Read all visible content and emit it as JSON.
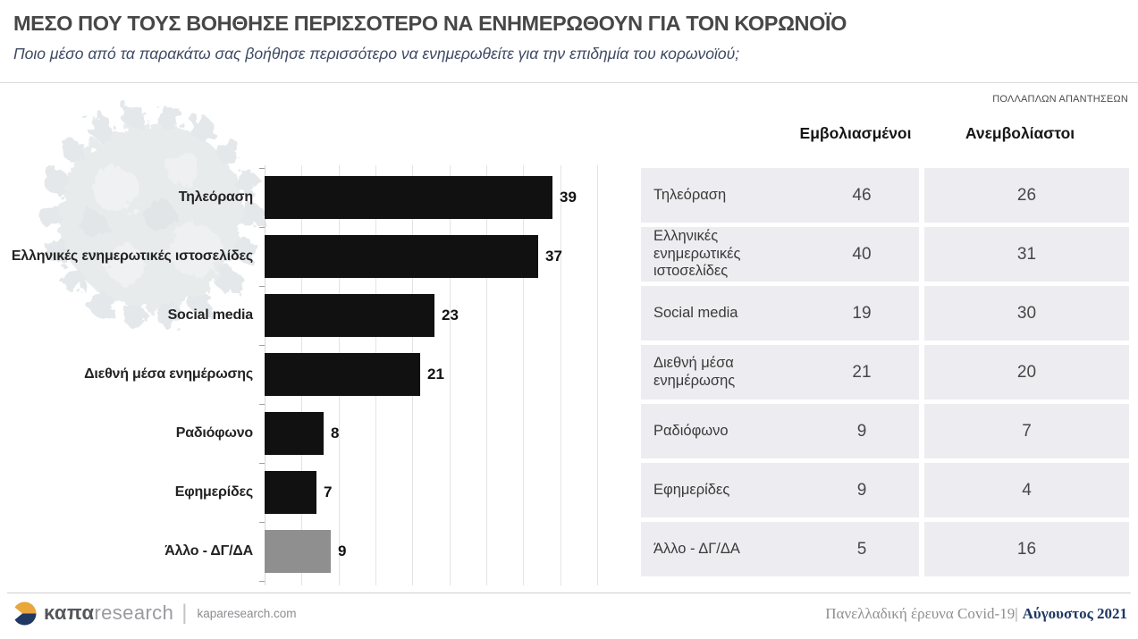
{
  "header": {
    "title": "ΜΕΣΟ ΠΟΥ ΤΟΥΣ ΒΟΗΘΗΣΕ ΠΕΡΙΣΣΟΤΕΡΟ ΝΑ ΕΝΗΜΕΡΩΘΟΥΝ ΓΙΑ ΤΟΝ ΚΟΡΩΝΟΪΟ",
    "subtitle": "Ποιο μέσο από τα παρακάτω σας βοήθησε περισσότερο να ενημερωθείτε για την επιδημία του κορωνοϊού;"
  },
  "chart_data": [
    {
      "type": "bar",
      "orientation": "horizontal",
      "title": "",
      "categories": [
        "Τηλεόραση",
        "Ελληνικές ενημερωτικές ιστοσελίδες",
        "Social media",
        "Διεθνή μέσα ενημέρωσης",
        "Ραδιόφωνο",
        "Εφημερίδες",
        "Άλλο - ΔΓ/ΔΑ"
      ],
      "values": [
        39,
        37,
        23,
        21,
        8,
        7,
        9
      ],
      "bar_colors": [
        "#111111",
        "#111111",
        "#111111",
        "#111111",
        "#111111",
        "#111111",
        "#8f8f8f"
      ],
      "xlim": [
        0,
        45
      ],
      "grid": true,
      "grid_step": 5,
      "value_labels": true,
      "legend": "none"
    },
    {
      "type": "table",
      "note": "ΠΟΛΛΑΠΛΩΝ ΑΠΑΝΤΗΣΕΩΝ",
      "columns": [
        "Εμβολιασμένοι",
        "Ανεμβολίαστοι"
      ],
      "rows": [
        {
          "label": "Τηλεόραση",
          "values": [
            46,
            26
          ]
        },
        {
          "label": "Ελληνικές ενημερωτικές ιστοσελίδες",
          "values": [
            40,
            31
          ]
        },
        {
          "label": "Social media",
          "values": [
            19,
            30
          ]
        },
        {
          "label": "Διεθνή μέσα ενημέρωσης",
          "values": [
            21,
            20
          ]
        },
        {
          "label": "Ραδιόφωνο",
          "values": [
            9,
            7
          ]
        },
        {
          "label": "Εφημερίδες",
          "values": [
            9,
            4
          ]
        },
        {
          "label": "Άλλο - ΔΓ/ΔΑ",
          "values": [
            5,
            16
          ]
        }
      ]
    }
  ],
  "footer": {
    "logo_text_bold": "καπα",
    "logo_text_light": "research",
    "separator": "|",
    "website": "kaparesearch.com",
    "survey_label": "Πανελλαδική έρευνα Covid-19|",
    "survey_date": "Αύγουστος 2021"
  },
  "colors": {
    "bar_black": "#111111",
    "bar_gray": "#8f8f8f",
    "table_row_bg": "#ededf1",
    "accent_navy": "#1f3864",
    "accent_gold": "#e9a63b",
    "subtitle_blue": "#3e4a63"
  }
}
